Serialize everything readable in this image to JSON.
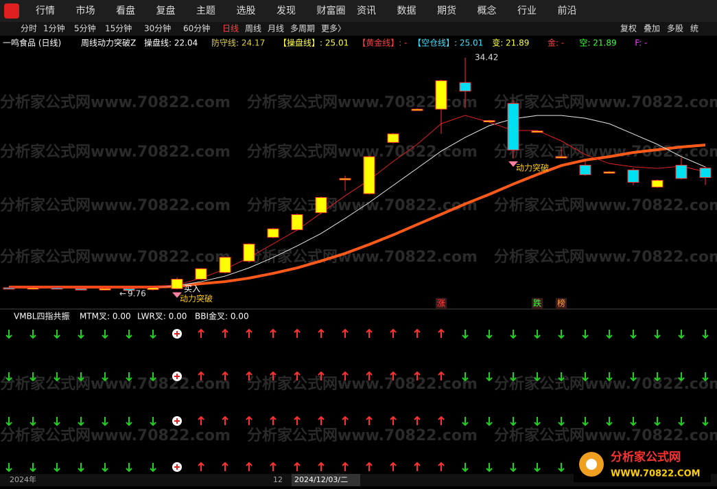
{
  "menu": [
    "行情",
    "市场",
    "看盘",
    "复盘",
    "主题",
    "选股",
    "发现",
    "财富圈",
    "资讯",
    "数据",
    "期货",
    "概念",
    "行业",
    "前沿"
  ],
  "toolbar": {
    "periods": [
      "分时",
      "1分钟",
      "5分钟",
      "15分钟",
      "30分钟",
      "60分钟",
      "日线",
      "周线",
      "月线",
      "多周期",
      "更多〉"
    ],
    "active": 6,
    "right": [
      "复权",
      "叠加",
      "多股",
      "统"
    ]
  },
  "info": {
    "stock": "一鸣食品 (日线)",
    "formula": "周线动力突破Z",
    "items": [
      {
        "text": "操盘线: 22.04",
        "color": "#ffffff"
      },
      {
        "text": "防守线: 24.17",
        "color": "#e0d040"
      },
      {
        "text": "【操盘线】: 25.01",
        "color": "#ffff40"
      },
      {
        "text": "【黄金线】: -",
        "color": "#ff4040"
      },
      {
        "text": "【空仓线】: 25.01",
        "color": "#40e0ff"
      },
      {
        "text": "变: 21.89",
        "color": "#ffff40"
      },
      {
        "text": "金: -",
        "color": "#ff4040"
      },
      {
        "text": "空: 21.89",
        "color": "#40ff40"
      },
      {
        "text": "F: -",
        "color": "#ff40ff"
      }
    ]
  },
  "chart": {
    "type": "candlestick",
    "up_color": "#ffff00",
    "down_color": "#00e0f0",
    "border_color": "#ff3030",
    "candles": [
      {
        "open": 10.2,
        "high": 10.3,
        "low": 10.0,
        "close": 10.1
      },
      {
        "open": 10.1,
        "high": 10.3,
        "low": 10.0,
        "close": 10.2
      },
      {
        "open": 10.2,
        "high": 10.3,
        "low": 10.0,
        "close": 10.1
      },
      {
        "open": 10.1,
        "high": 10.2,
        "low": 9.9,
        "close": 10.0
      },
      {
        "open": 10.0,
        "high": 10.2,
        "low": 9.9,
        "close": 10.1
      },
      {
        "open": 10.1,
        "high": 10.2,
        "low": 9.76,
        "close": 9.9
      },
      {
        "open": 10.0,
        "high": 10.3,
        "low": 9.9,
        "close": 10.2
      },
      {
        "open": 10.1,
        "high": 11.3,
        "low": 10.0,
        "close": 11.1
      },
      {
        "open": 11.1,
        "high": 12.3,
        "low": 11.0,
        "close": 12.2
      },
      {
        "open": 11.8,
        "high": 13.5,
        "low": 11.7,
        "close": 13.4
      },
      {
        "open": 13.0,
        "high": 14.9,
        "low": 12.9,
        "close": 14.8
      },
      {
        "open": 15.5,
        "high": 16.5,
        "low": 15.4,
        "close": 16.4
      },
      {
        "open": 16.3,
        "high": 18.0,
        "low": 16.2,
        "close": 17.9
      },
      {
        "open": 18.1,
        "high": 19.8,
        "low": 18.0,
        "close": 19.7
      },
      {
        "open": 21.6,
        "high": 22.0,
        "low": 20.4,
        "close": 21.7
      },
      {
        "open": 20.1,
        "high": 24.1,
        "low": 20.0,
        "close": 24.0
      },
      {
        "open": 25.5,
        "high": 26.5,
        "low": 25.4,
        "close": 26.4
      },
      {
        "open": 29.0,
        "high": 29.1,
        "low": 28.9,
        "close": 29.0
      },
      {
        "open": 29.0,
        "high": 32.1,
        "low": 26.4,
        "close": 32.0
      },
      {
        "open": 31.8,
        "high": 34.42,
        "low": 29.1,
        "close": 30.9
      },
      {
        "open": 27.8,
        "high": 27.9,
        "low": 27.7,
        "close": 27.8
      },
      {
        "open": 29.6,
        "high": 29.9,
        "low": 23.8,
        "close": 24.7
      },
      {
        "open": 26.7,
        "high": 26.8,
        "low": 26.6,
        "close": 26.7
      },
      {
        "open": 24.0,
        "high": 25.0,
        "low": 23.9,
        "close": 24.0
      },
      {
        "open": 23.1,
        "high": 23.5,
        "low": 22.0,
        "close": 22.1
      },
      {
        "open": 22.4,
        "high": 22.5,
        "low": 22.3,
        "close": 22.4
      },
      {
        "open": 22.6,
        "high": 22.8,
        "low": 21.0,
        "close": 21.3
      },
      {
        "open": 20.8,
        "high": 21.6,
        "low": 20.7,
        "close": 21.5
      },
      {
        "open": 23.1,
        "high": 23.9,
        "low": 21.6,
        "close": 21.7
      },
      {
        "open": 22.8,
        "high": 23.0,
        "low": 21.0,
        "close": 21.8
      }
    ],
    "lines": [
      {
        "color": "#ff5a1a",
        "width": 4,
        "values": [
          10.27,
          10.27,
          10.27,
          10.27,
          10.27,
          10.27,
          10.27,
          10.34,
          10.63,
          10.84,
          11.21,
          11.71,
          12.29,
          13.02,
          13.81,
          14.75,
          15.76,
          16.85,
          17.93,
          19.02,
          20.03,
          21.11,
          22.12,
          23.06,
          23.64,
          24.0,
          24.44,
          24.73,
          25.02,
          25.23
        ]
      },
      {
        "color": "#e8e8e8",
        "width": 1,
        "values": [
          10.27,
          10.27,
          10.27,
          10.27,
          10.27,
          10.27,
          10.27,
          10.41,
          10.84,
          11.42,
          12.29,
          13.38,
          14.6,
          15.91,
          17.5,
          19.16,
          20.97,
          22.77,
          24.58,
          26.03,
          27.26,
          27.98,
          28.34,
          28.34,
          28.05,
          27.47,
          26.39,
          25.3,
          24.0,
          22.92
        ]
      },
      {
        "color": "#e02020",
        "width": 1,
        "values": [
          10.27,
          10.27,
          10.27,
          10.27,
          10.27,
          10.27,
          10.27,
          10.48,
          11.21,
          12.15,
          13.38,
          14.82,
          16.27,
          18.07,
          19.88,
          21.54,
          23.5,
          25.3,
          27.47,
          28.34,
          27.62,
          26.75,
          26.75,
          25.66,
          24.22,
          23.28,
          22.92,
          22.77,
          22.99,
          22.41
        ]
      }
    ],
    "high_label": 34.42,
    "low_label": 9.76,
    "signals": [
      {
        "index": 7,
        "text": "动力突破"
      },
      {
        "index": 21,
        "text": "动力突破"
      }
    ],
    "buy": "买入",
    "tags": [
      {
        "index": 18,
        "text": "涨",
        "color": "#ff4040"
      },
      {
        "index": 22,
        "text": "跌",
        "color": "#40ff40"
      },
      {
        "index": 23,
        "text": "榜",
        "color": "#ffa040"
      }
    ]
  },
  "indicator": {
    "name": "VMBL四指共振",
    "items": [
      "MTM叉: 0.00",
      "LWR叉: 0.00",
      "BBI金叉: 0.00"
    ],
    "arrows": [
      "down",
      "down",
      "down",
      "down",
      "down",
      "down",
      "down",
      "plus",
      "up",
      "up",
      "up",
      "up",
      "up",
      "up",
      "up",
      "up",
      "up",
      "up",
      "up",
      "down",
      "down",
      "down",
      "down",
      "down",
      "down",
      "down",
      "down",
      "down",
      "down",
      "down"
    ]
  },
  "axis": [
    "2024年",
    "12",
    "2024/12/03/二"
  ],
  "watermark": "分析家公式网www.70822.com",
  "logo": {
    "title": "分析家公式网",
    "url": "WWW.70822.COM"
  }
}
